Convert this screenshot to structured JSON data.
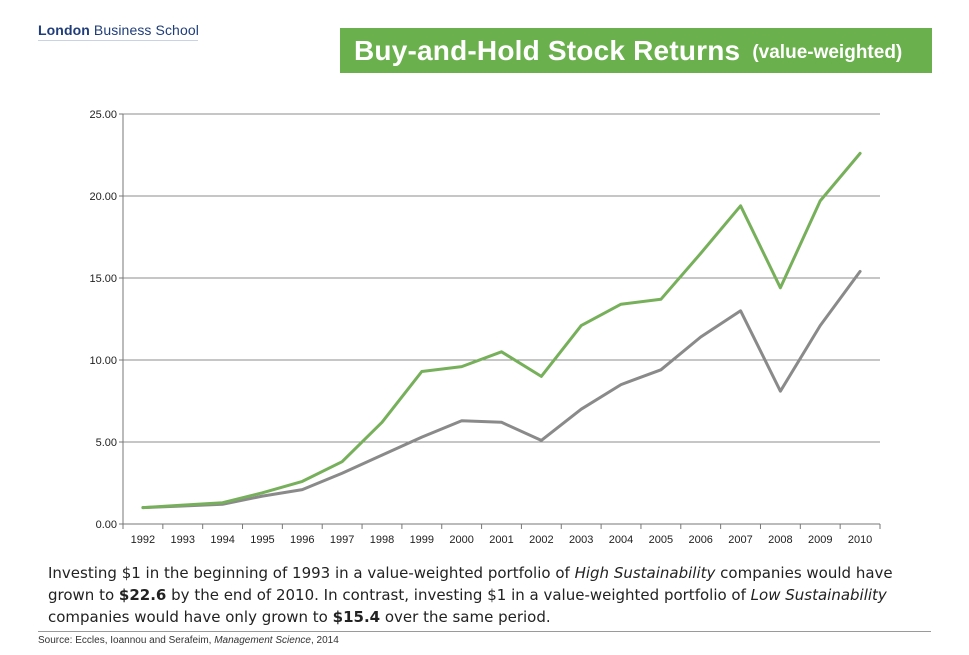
{
  "header": {
    "logo_bold": "London",
    "logo_rest": "Business School",
    "title_main": "Buy-and-Hold Stock Returns",
    "title_sub": "(value-weighted)"
  },
  "colors": {
    "accent": "#6ab04c",
    "high_series": "#77b05a",
    "low_series": "#8a8a8a",
    "grid": "#8c8c8c"
  },
  "chart_data": {
    "type": "line",
    "title": "Buy-and-Hold Stock Returns (value-weighted)",
    "xlabel": "",
    "ylabel": "",
    "categories": [
      "1992",
      "1993",
      "1994",
      "1995",
      "1996",
      "1997",
      "1998",
      "1999",
      "2000",
      "2001",
      "2002",
      "2003",
      "2004",
      "2005",
      "2006",
      "2007",
      "2008",
      "2009",
      "2010"
    ],
    "ylim": [
      0,
      25
    ],
    "yticks": [
      "0.00",
      "5.00",
      "10.00",
      "15.00",
      "20.00",
      "25.00"
    ],
    "series": [
      {
        "name": "High Sustainability",
        "color": "#77b05a",
        "values": [
          1.0,
          1.15,
          1.3,
          1.9,
          2.6,
          3.8,
          6.2,
          9.3,
          9.6,
          10.5,
          9.0,
          12.1,
          13.4,
          13.7,
          16.5,
          19.4,
          14.4,
          19.7,
          22.6
        ]
      },
      {
        "name": "Low Sustainability",
        "color": "#8a8a8a",
        "values": [
          1.0,
          1.1,
          1.2,
          1.7,
          2.1,
          3.1,
          4.2,
          5.3,
          6.3,
          6.2,
          5.1,
          7.0,
          8.5,
          9.4,
          11.4,
          13.0,
          8.1,
          12.1,
          15.4
        ]
      }
    ]
  },
  "caption": {
    "p1": "Investing $1 in the beginning of 1993 in a value-weighted portfolio of",
    "p2": "High Sustainability",
    "p3": "companies would have grown to",
    "p4": "$22.6",
    "p5": "by the end of 2010. In contrast, investing $1 in a value-weighted portfolio of",
    "p6": "Low Sustainability",
    "p7": "companies would have only grown to",
    "p8": "$15.4",
    "p9": "over the same period."
  },
  "source": {
    "prefix": "Source:  Eccles, Ioannou  and Serafeim,",
    "journal": "Management Science",
    "suffix": ", 2014"
  }
}
